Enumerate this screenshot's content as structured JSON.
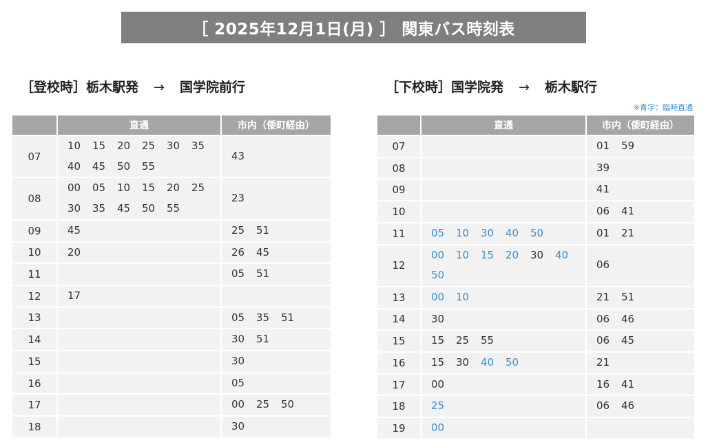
{
  "title": "［ 2025年12月1日(月) ］ 関東バス時刻表",
  "colors": {
    "title_bg": "#7f7f7f",
    "header_bg": "#a6a6a6",
    "cell_bg": "#f2f2f2",
    "extra_blue": "#3a8fd0"
  },
  "left": {
    "route_from": "［登校時］栃木駅発",
    "arrow": "→",
    "route_to": "国学院前行",
    "headers": [
      "",
      "直通",
      "市内（倭町経由）"
    ],
    "rows": [
      {
        "hour": "07",
        "direct": [
          "10",
          "15",
          "20",
          "25",
          "30",
          "35",
          "40",
          "45",
          "50",
          "55"
        ],
        "city": [
          "43"
        ]
      },
      {
        "hour": "08",
        "direct": [
          "00",
          "05",
          "10",
          "15",
          "20",
          "25",
          "30",
          "35",
          "45",
          "50",
          "55"
        ],
        "city": [
          "23"
        ]
      },
      {
        "hour": "09",
        "direct": [
          "45"
        ],
        "city": [
          "25",
          "51"
        ]
      },
      {
        "hour": "10",
        "direct": [
          "20"
        ],
        "city": [
          "26",
          "45"
        ]
      },
      {
        "hour": "11",
        "direct": [],
        "city": [
          "05",
          "51"
        ]
      },
      {
        "hour": "12",
        "direct": [
          "17"
        ],
        "city": []
      },
      {
        "hour": "13",
        "direct": [],
        "city": [
          "05",
          "35",
          "51"
        ]
      },
      {
        "hour": "14",
        "direct": [],
        "city": [
          "30",
          "51"
        ]
      },
      {
        "hour": "15",
        "direct": [],
        "city": [
          "30"
        ]
      },
      {
        "hour": "16",
        "direct": [],
        "city": [
          "05"
        ]
      },
      {
        "hour": "17",
        "direct": [],
        "city": [
          "00",
          "25",
          "50"
        ]
      },
      {
        "hour": "18",
        "direct": [],
        "city": [
          "30"
        ]
      }
    ]
  },
  "right": {
    "route_from": "［下校時］国学院発",
    "arrow": "→",
    "route_to": "栃木駅行",
    "note": "※青字：臨時直通",
    "headers": [
      "",
      "直通",
      "市内（倭町経由）"
    ],
    "rows": [
      {
        "hour": "07",
        "direct": [],
        "city": [
          "01",
          "59"
        ]
      },
      {
        "hour": "08",
        "direct": [],
        "city": [
          "39"
        ]
      },
      {
        "hour": "09",
        "direct": [],
        "city": [
          "41"
        ]
      },
      {
        "hour": "10",
        "direct": [],
        "city": [
          "06",
          "41"
        ]
      },
      {
        "hour": "11",
        "direct": [
          {
            "t": "05",
            "extra": true
          },
          {
            "t": "10",
            "extra": true
          },
          {
            "t": "30",
            "extra": true
          },
          {
            "t": "40",
            "extra": true
          },
          {
            "t": "50",
            "extra": true
          }
        ],
        "city": [
          "01",
          "21"
        ]
      },
      {
        "hour": "12",
        "direct": [
          {
            "t": "00",
            "extra": true
          },
          {
            "t": "10",
            "extra": true
          },
          {
            "t": "15",
            "extra": true
          },
          {
            "t": "20",
            "extra": true
          },
          {
            "t": "30",
            "extra": false
          },
          {
            "t": "40",
            "extra": true
          },
          {
            "t": "50",
            "extra": true
          }
        ],
        "city": [
          "06"
        ]
      },
      {
        "hour": "13",
        "direct": [
          {
            "t": "00",
            "extra": true
          },
          {
            "t": "10",
            "extra": true
          }
        ],
        "city": [
          "21",
          "51"
        ]
      },
      {
        "hour": "14",
        "direct": [
          "30"
        ],
        "city": [
          "06",
          "46"
        ]
      },
      {
        "hour": "15",
        "direct": [
          "15",
          "25",
          "55"
        ],
        "city": [
          "06",
          "45"
        ]
      },
      {
        "hour": "16",
        "direct": [
          "15",
          "30",
          {
            "t": "40",
            "extra": true
          },
          {
            "t": "50",
            "extra": true
          }
        ],
        "city": [
          "21"
        ]
      },
      {
        "hour": "17",
        "direct": [
          "00"
        ],
        "city": [
          "16",
          "41"
        ]
      },
      {
        "hour": "18",
        "direct": [
          {
            "t": "25",
            "extra": true
          }
        ],
        "city": [
          "06",
          "46"
        ]
      },
      {
        "hour": "19",
        "direct": [
          {
            "t": "00",
            "extra": true
          }
        ],
        "city": []
      }
    ]
  }
}
